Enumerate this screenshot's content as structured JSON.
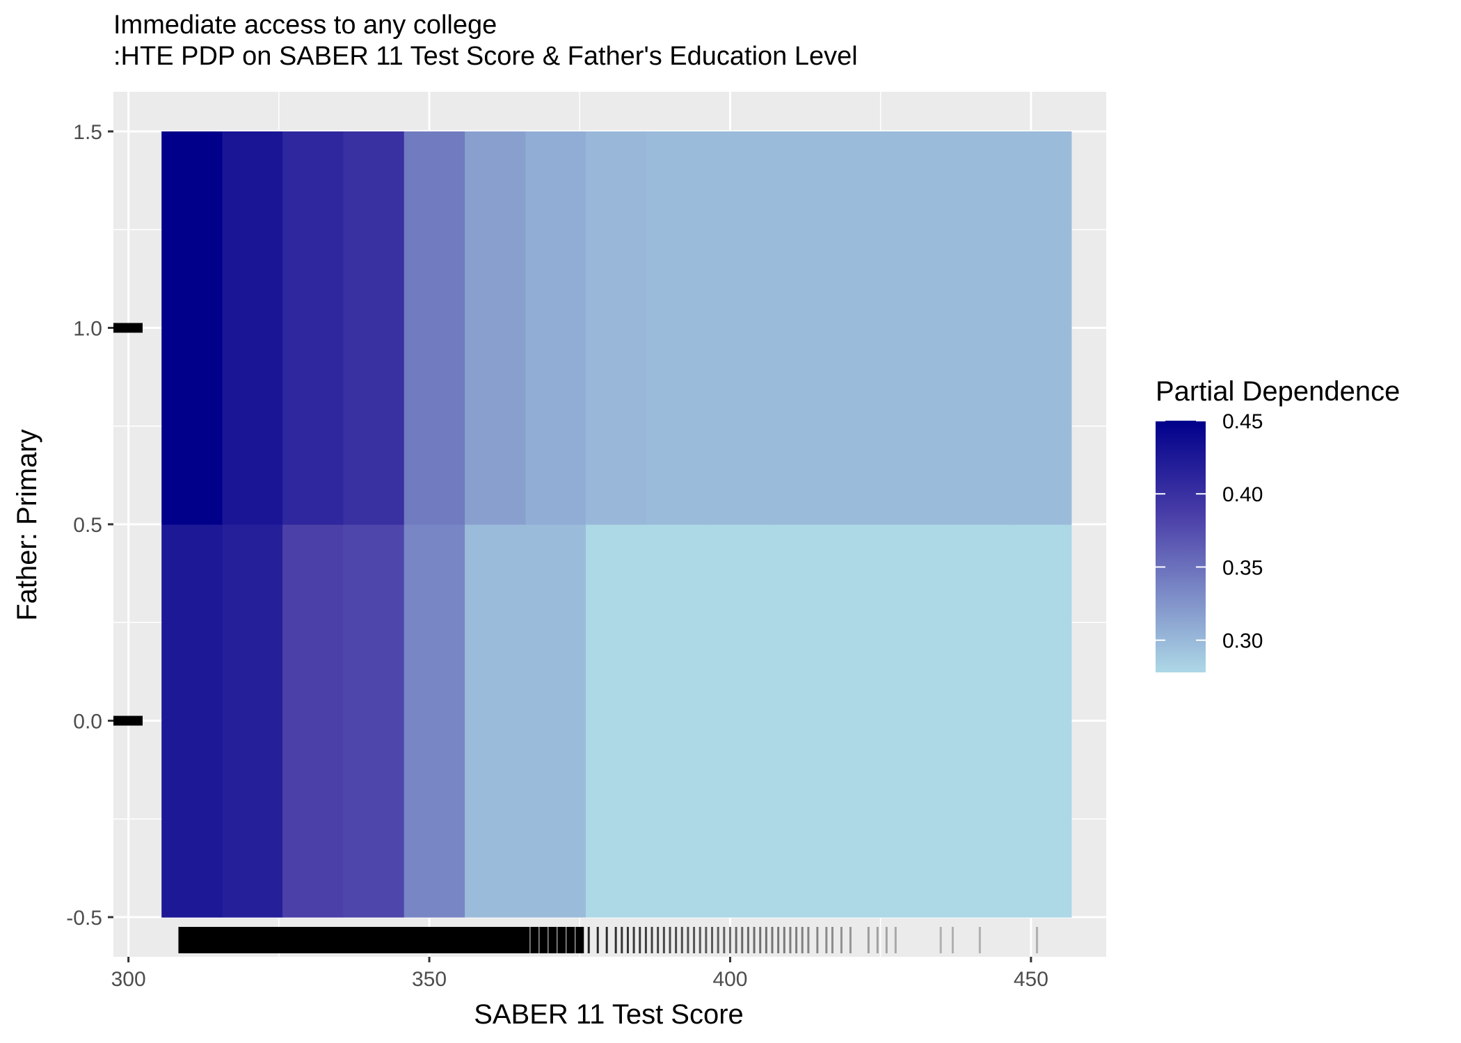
{
  "chart_data": {
    "type": "heatmap",
    "title": "Immediate access to any college",
    "subtitle": ":HTE PDP on SABER 11 Test Score & Father's Education Level",
    "xlabel": "SABER 11 Test Score",
    "ylabel": "Father: Primary",
    "xlim": [
      297.5,
      462.5
    ],
    "ylim": [
      -0.5,
      1.5
    ],
    "x_ticks": [
      "300",
      "350",
      "400",
      "450"
    ],
    "y_ticks": [
      "-0.5",
      "0.0",
      "0.5",
      "1.0",
      "1.5"
    ],
    "x_bins": [
      305.5,
      315.6,
      325.6,
      335.7,
      345.8,
      355.9,
      366.0,
      376.0,
      386.1,
      396.2,
      406.3,
      416.4,
      426.4,
      436.5,
      446.6,
      456.7
    ],
    "y_levels": [
      0,
      1
    ],
    "grid": true,
    "values": [
      [
        0.425,
        0.418,
        0.385,
        0.38,
        0.335,
        0.298,
        0.298,
        0.278,
        0.278,
        0.278,
        0.278,
        0.278,
        0.278,
        0.278,
        0.278
      ],
      [
        0.45,
        0.428,
        0.41,
        0.4,
        0.343,
        0.317,
        0.308,
        0.3,
        0.298,
        0.298,
        0.298,
        0.298,
        0.298,
        0.298,
        0.298
      ]
    ],
    "rug_x": [
      309.0,
      311.0,
      313.0,
      315.0,
      317.0,
      319.0,
      321.0,
      323.0,
      325.0,
      327.0,
      329.0,
      331.0,
      333.0,
      335.0,
      337.0,
      339.0,
      341.0,
      343.0,
      345.0,
      347.0,
      349.0,
      351.0,
      353.0,
      355.0,
      357.0,
      359.0,
      361.0,
      363.0,
      364.5,
      366.0,
      367.5,
      369.0,
      370.5,
      372.0,
      373.5,
      375.0,
      376.5,
      378.0,
      379.5,
      381.0,
      382.0,
      383.0,
      384.0,
      385.0,
      386.0,
      387.0,
      388.0,
      389.0,
      390.0,
      391.0,
      392.0,
      393.0,
      394.0,
      395.0,
      396.0,
      397.0,
      398.0,
      399.0,
      400.0,
      401.0,
      402.0,
      403.0,
      404.0,
      405.0,
      406.0,
      407.0,
      408.0,
      409.0,
      410.0,
      411.0,
      412.0,
      413.0,
      414.5,
      416.0,
      417.0,
      418.5,
      420.0,
      423.0,
      424.5,
      426.0,
      427.5,
      435.0,
      437.0,
      441.5,
      451.0
    ],
    "rug_y": [
      0.0,
      1.0
    ],
    "legend": {
      "title": "Partial Dependence",
      "position": "right",
      "ticks": [
        "0.45",
        "0.40",
        "0.35",
        "0.30"
      ],
      "tick_values": [
        0.45,
        0.4,
        0.35,
        0.3
      ],
      "range": [
        0.278,
        0.45
      ],
      "low_color": "#add8e6",
      "mid_color": "#4b3fa8",
      "high_color": "#00008b"
    },
    "panel_background": "#ebebeb",
    "grid_color": "#ffffff"
  }
}
